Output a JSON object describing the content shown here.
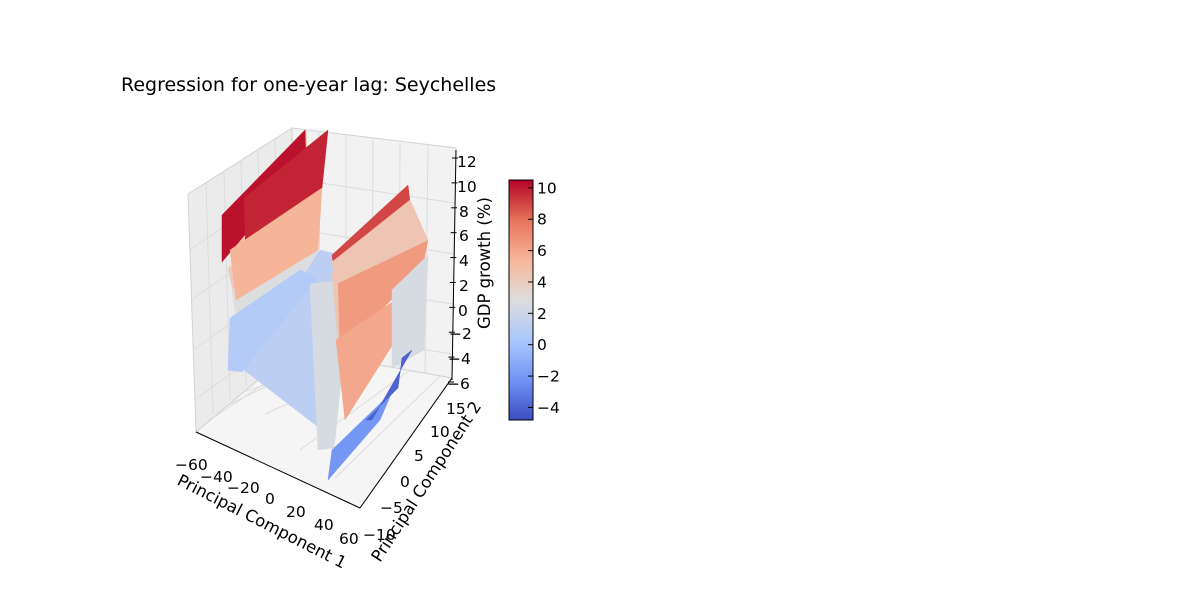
{
  "chart_data": {
    "type": "surface3d",
    "title": "Regression for one-year lag: Seychelles",
    "xlabel": "Principal Component 1",
    "ylabel": "Principal Component 2",
    "zlabel": "GDP growth (%)",
    "xlim": [
      -60,
      60
    ],
    "ylim": [
      -10,
      15
    ],
    "zlim": [
      -6,
      12
    ],
    "xticks": [
      "−60",
      "−40",
      "−20",
      "0",
      "20",
      "40",
      "60"
    ],
    "yticks": [
      "−10",
      "−5",
      "0",
      "5",
      "10",
      "15"
    ],
    "zticks": [
      "−6",
      "−4",
      "−2",
      "0",
      "2",
      "4",
      "6",
      "8",
      "10",
      "12"
    ],
    "grid": true,
    "colormap": "coolwarm",
    "colormap_stops": [
      "#3b4cc0",
      "#6f92f3",
      "#aac7fd",
      "#dddddd",
      "#f7b89c",
      "#e7745b",
      "#b40426"
    ],
    "colorbar": {
      "range": [
        -4.8,
        10.5
      ],
      "ticks": [
        "−4",
        "−2",
        "0",
        "2",
        "4",
        "6",
        "8",
        "10"
      ],
      "tick_values": [
        -4,
        -2,
        0,
        2,
        4,
        6,
        8,
        10
      ]
    },
    "surface_patches": [
      {
        "name": "left-ridge-top-front",
        "z": 10.2
      },
      {
        "name": "left-ridge-top-right",
        "z": 9.8
      },
      {
        "name": "left-wall-upper",
        "z": 5.5
      },
      {
        "name": "left-wall-mid",
        "z": 5.0
      },
      {
        "name": "left-wall-lower",
        "z": 4.0
      },
      {
        "name": "left-wall-base",
        "z": 2.8
      },
      {
        "name": "center-plane",
        "z": 1.2
      },
      {
        "name": "center-plane-tip",
        "z": 0.8
      },
      {
        "name": "right-ridge-top",
        "z": 9.0
      },
      {
        "name": "right-wall-upper",
        "z": 4.5
      },
      {
        "name": "right-wall-front",
        "z": 6.5
      },
      {
        "name": "right-wall-lower",
        "z": 6.0
      },
      {
        "name": "right-wall-gray",
        "z": 2.5
      },
      {
        "name": "right-floor-blue",
        "z": -2.0
      },
      {
        "name": "right-floor-dark",
        "z": -4.0
      }
    ]
  }
}
